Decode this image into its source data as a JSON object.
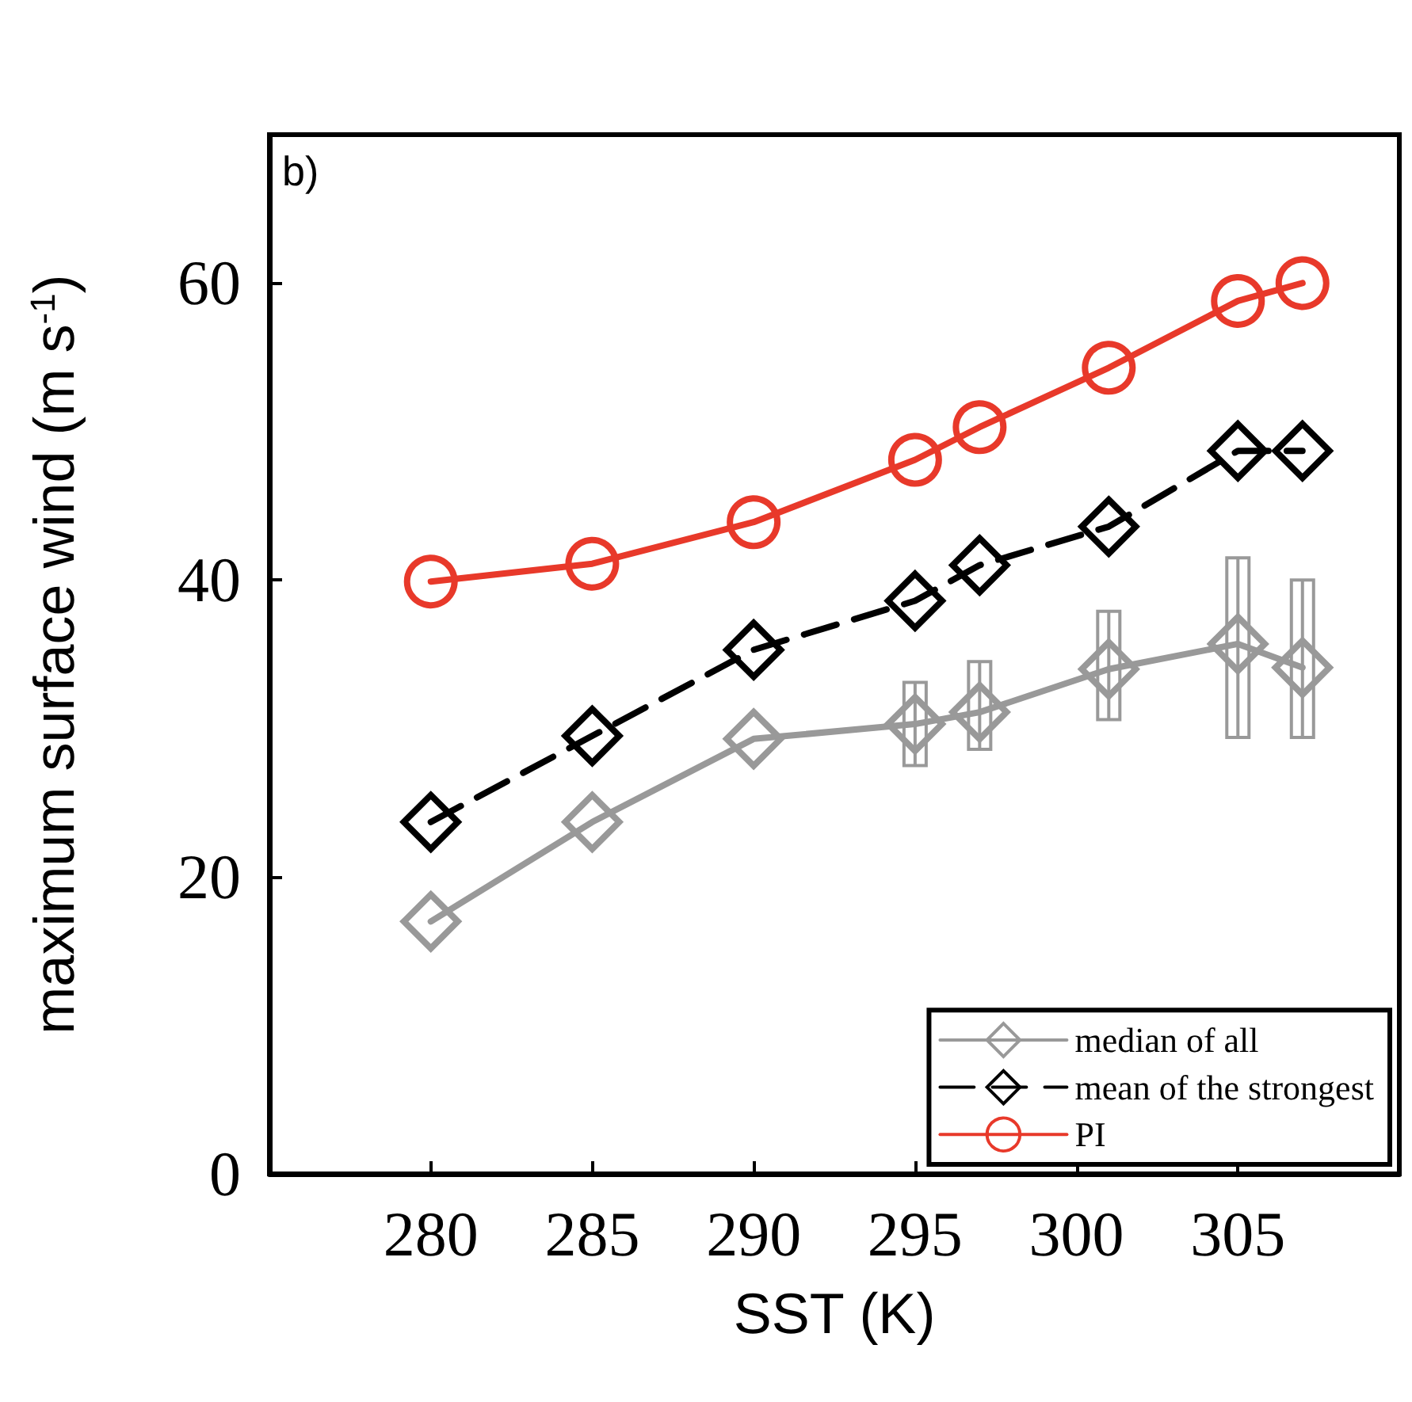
{
  "chart_data": {
    "type": "line",
    "xlabel": "SST (K)",
    "ylabel": "maximum surface wind (m s$^{-1}$)",
    "annotations": [
      "b)"
    ],
    "x": [
      280,
      285,
      290,
      295,
      297,
      301,
      305,
      307
    ],
    "xlim": [
      275,
      310
    ],
    "xticks": [
      280,
      285,
      290,
      295,
      300,
      305
    ],
    "ylim": [
      0,
      70
    ],
    "yticks": [
      0,
      20,
      40,
      60
    ],
    "grid": false,
    "legend": "bottom right",
    "series": [
      {
        "name": "median of all",
        "color": "#999999",
        "marker": "diamond",
        "line_style": "solid",
        "values": [
          17.0,
          23.7,
          29.3,
          30.3,
          31.1,
          34.0,
          35.7,
          34.1
        ],
        "errors": [
          null,
          null,
          null,
          [
            27.5,
            33.1
          ],
          [
            28.6,
            34.5
          ],
          [
            30.6,
            37.9
          ],
          [
            29.4,
            41.5
          ],
          [
            29.4,
            40.0
          ]
        ]
      },
      {
        "name": "mean of the strongest",
        "color": "#000000",
        "marker": "diamond",
        "line_style": "dashed",
        "values": [
          23.7,
          29.5,
          35.3,
          38.6,
          41.0,
          43.6,
          48.7,
          48.7
        ]
      },
      {
        "name": "PI",
        "color": "#e8392a",
        "marker": "circle",
        "line_style": "solid",
        "values": [
          39.9,
          41.1,
          43.9,
          48.1,
          50.3,
          54.3,
          58.8,
          60.0
        ]
      }
    ]
  }
}
